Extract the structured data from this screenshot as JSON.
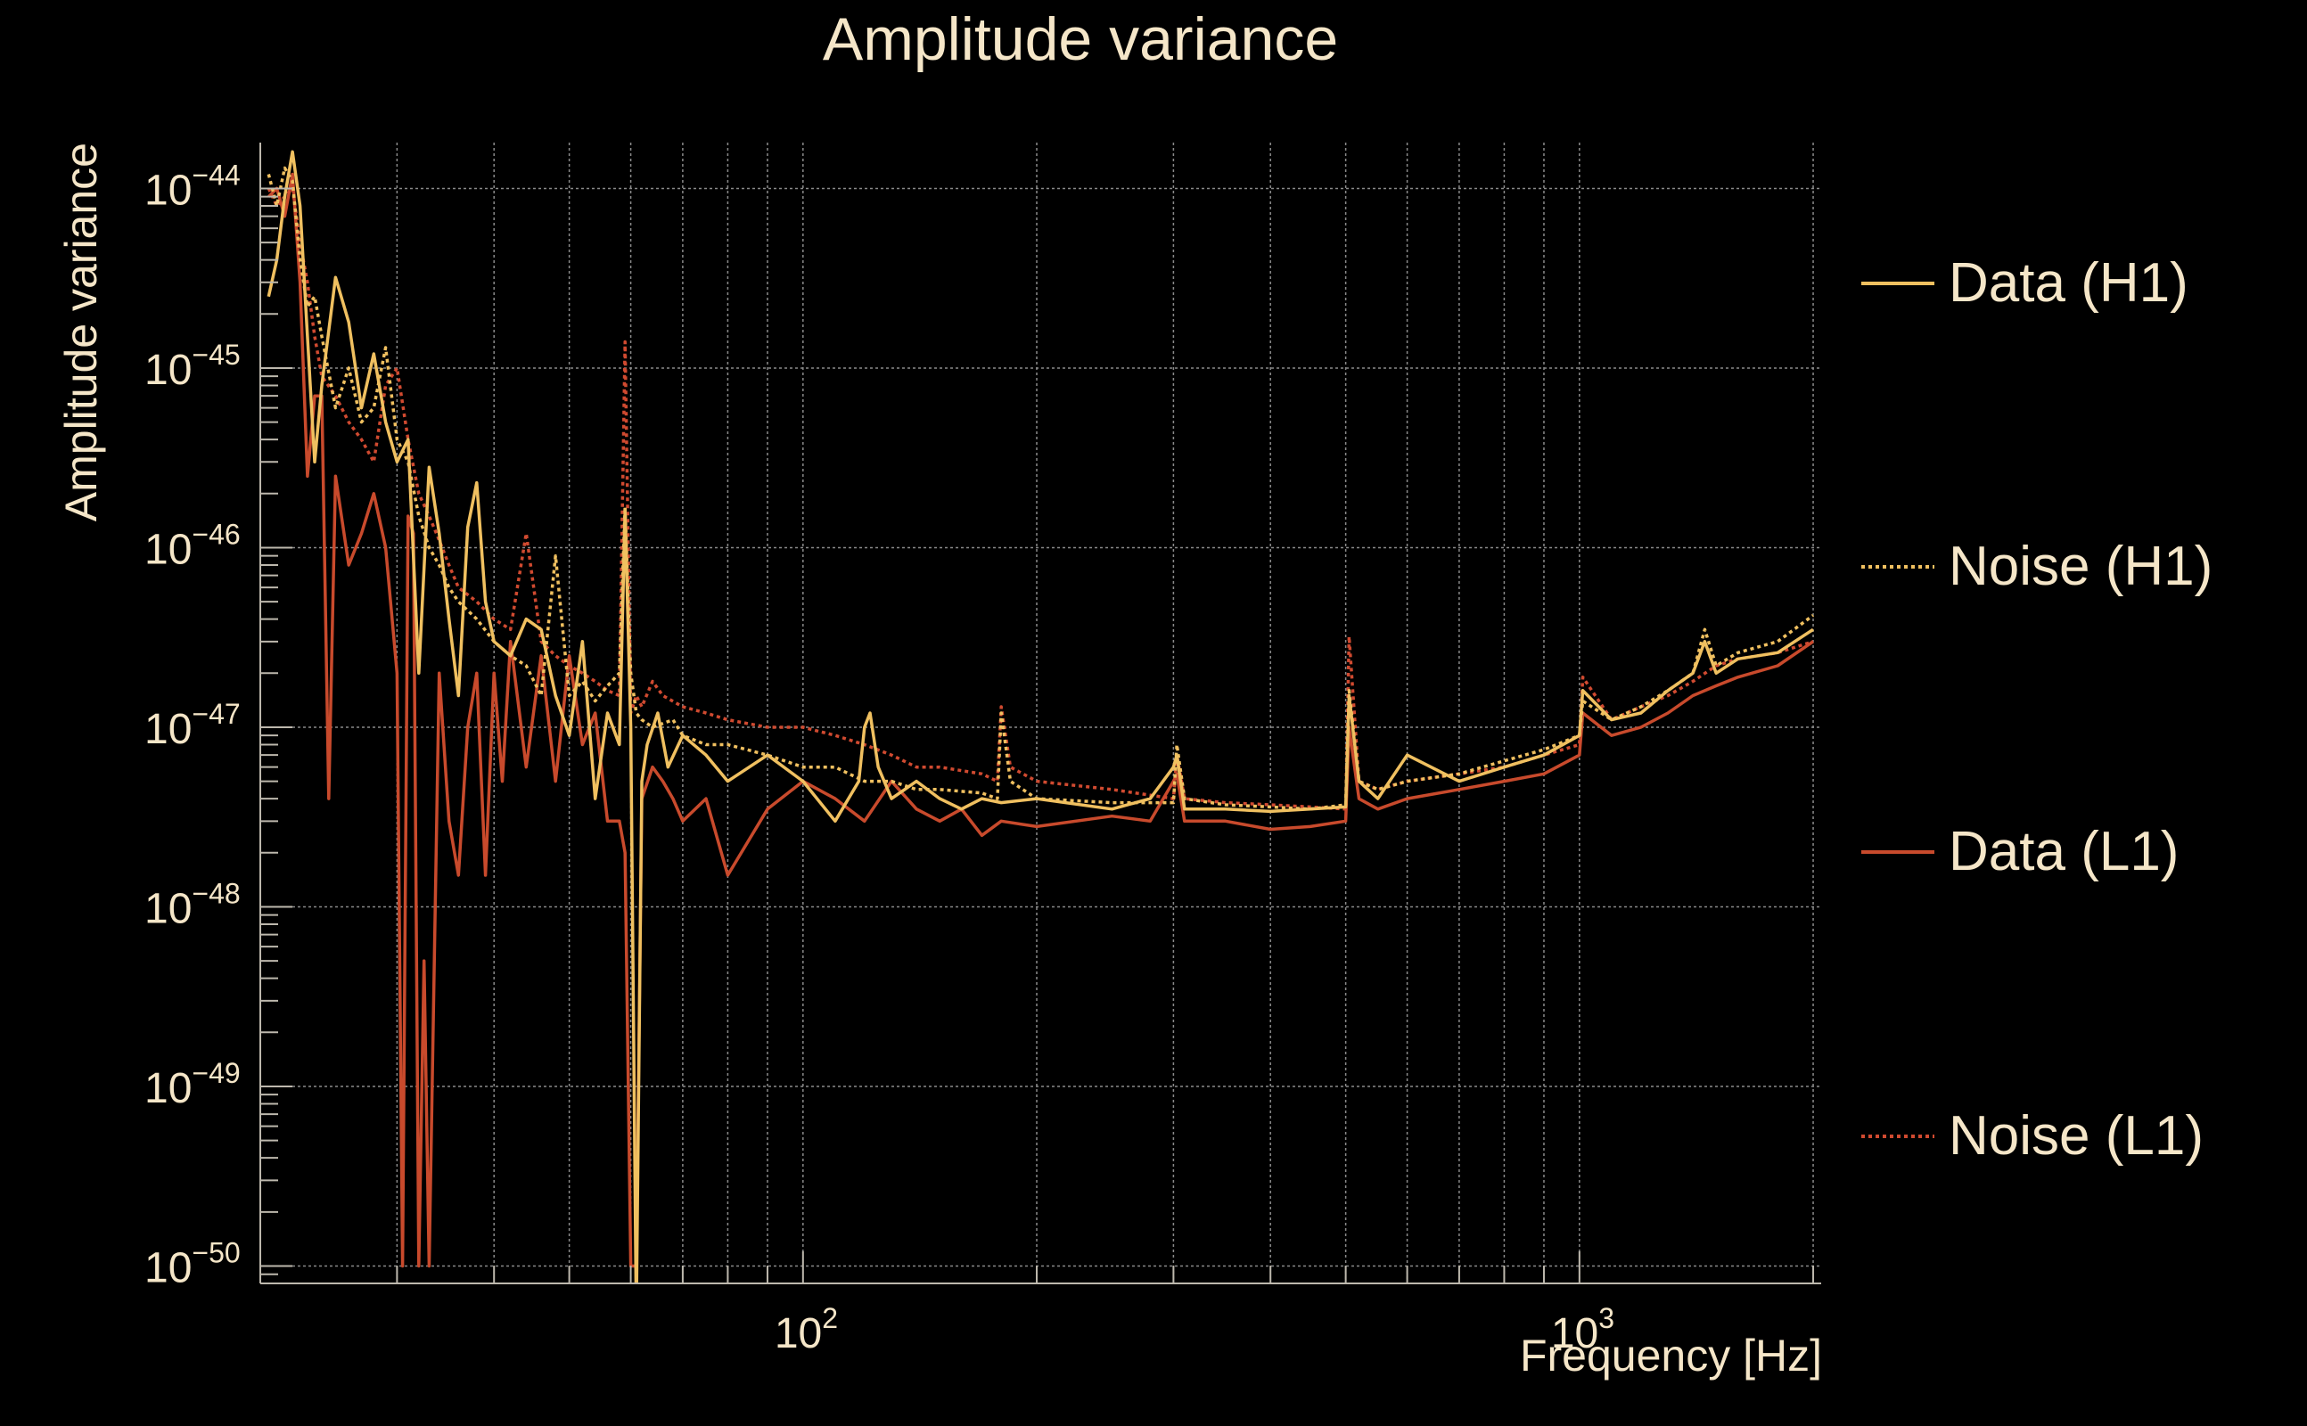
{
  "colors": {
    "background": "#000000",
    "text": "#f5e6c8",
    "axis": "#bdb8ad",
    "grid": "#8a8a8a",
    "data_h1": "#f0c060",
    "noise_h1": "#f0c060",
    "data_l1": "#c84a2c",
    "noise_l1": "#d04a30"
  },
  "chart_data": {
    "type": "line",
    "title": "Amplitude variance",
    "xlabel": "Frequency [Hz]",
    "ylabel": "Amplitude variance",
    "xscale": "log",
    "yscale": "log",
    "xlim": [
      20,
      2048
    ],
    "ylim": [
      8e-51,
      1.8e-44
    ],
    "x_ticks": [
      {
        "value": 100,
        "base": "10",
        "exp": "2"
      },
      {
        "value": 1000,
        "base": "10",
        "exp": "3"
      }
    ],
    "y_ticks": [
      {
        "value": 1e-44,
        "base": "10",
        "exp": "−44"
      },
      {
        "value": 1e-45,
        "base": "10",
        "exp": "−45"
      },
      {
        "value": 1e-46,
        "base": "10",
        "exp": "−46"
      },
      {
        "value": 1e-47,
        "base": "10",
        "exp": "−47"
      },
      {
        "value": 1e-48,
        "base": "10",
        "exp": "−48"
      },
      {
        "value": 1e-49,
        "base": "10",
        "exp": "−49"
      },
      {
        "value": 1e-50,
        "base": "10",
        "exp": "−50"
      }
    ],
    "grid": true,
    "legend_position": "right",
    "series": [
      {
        "name": "Data (H1)",
        "style": "solid",
        "color": "#f0c060",
        "x": [
          20.5,
          21,
          21.5,
          22,
          22.5,
          23,
          23.5,
          24,
          25,
          26,
          27,
          28,
          29,
          30,
          31,
          32,
          33,
          34,
          35,
          36,
          37,
          38,
          39,
          40,
          42,
          44,
          46,
          48,
          50,
          52,
          54,
          56,
          58,
          59,
          60,
          61,
          62,
          63,
          65,
          67,
          70,
          75,
          80,
          90,
          100,
          110,
          118,
          120,
          122,
          125,
          130,
          140,
          150,
          160,
          170,
          180,
          200,
          250,
          280,
          300,
          303,
          310,
          350,
          400,
          450,
          500,
          505,
          520,
          550,
          600,
          700,
          800,
          900,
          1000,
          1010,
          1100,
          1200,
          1300,
          1400,
          1450,
          1500,
          1600,
          1800,
          2000
        ],
        "y": [
          2.5e-45,
          4e-45,
          9e-45,
          1.6e-44,
          8e-45,
          1.5e-45,
          3e-46,
          8e-46,
          3.2e-45,
          1.8e-45,
          6e-46,
          1.2e-45,
          5e-46,
          3e-46,
          4e-46,
          2e-47,
          2.8e-46,
          1.2e-46,
          4e-47,
          1.5e-47,
          1.3e-46,
          2.3e-46,
          5e-47,
          3e-47,
          2.5e-47,
          4e-47,
          3.5e-47,
          1.5e-47,
          9e-48,
          3e-47,
          4e-48,
          1.2e-47,
          8e-48,
          1.6e-46,
          1e-47,
          5e-51,
          5e-48,
          8e-48,
          1.2e-47,
          6e-48,
          9e-48,
          7e-48,
          5e-48,
          7e-48,
          5e-48,
          3e-48,
          5e-48,
          1e-47,
          1.2e-47,
          6e-48,
          4e-48,
          5e-48,
          4e-48,
          3.5e-48,
          4e-48,
          3.8e-48,
          4e-48,
          3.5e-48,
          4e-48,
          6e-48,
          7e-48,
          3.5e-48,
          3.5e-48,
          3.4e-48,
          3.5e-48,
          3.6e-48,
          1.5e-47,
          5e-48,
          4e-48,
          7e-48,
          5e-48,
          6e-48,
          7e-48,
          9e-48,
          1.6e-47,
          1.1e-47,
          1.2e-47,
          1.6e-47,
          2e-47,
          3e-47,
          2e-47,
          2.4e-47,
          2.6e-47,
          3.5e-47
        ]
      },
      {
        "name": "Noise (H1)",
        "style": "dotted",
        "color": "#f0c060",
        "x": [
          20.5,
          21,
          21.5,
          22,
          22.5,
          23,
          23.5,
          24,
          25,
          26,
          27,
          28,
          29,
          30,
          31,
          32,
          33,
          34,
          35,
          36,
          38,
          40,
          42,
          44,
          46,
          48,
          50,
          52,
          54,
          56,
          58,
          59,
          60,
          61,
          62,
          64,
          68,
          70,
          75,
          80,
          90,
          100,
          110,
          120,
          130,
          140,
          150,
          170,
          178,
          180,
          185,
          200,
          250,
          300,
          303,
          310,
          350,
          400,
          450,
          500,
          505,
          520,
          550,
          600,
          700,
          800,
          900,
          1000,
          1010,
          1100,
          1200,
          1300,
          1400,
          1450,
          1500,
          1600,
          1800,
          2000
        ],
        "y": [
          1.2e-44,
          8e-45,
          1.3e-44,
          1.1e-44,
          4e-45,
          2.2e-45,
          2.5e-45,
          1.5e-45,
          6e-46,
          1e-45,
          5e-46,
          6e-46,
          1.3e-45,
          4e-46,
          3e-46,
          1.5e-46,
          1e-46,
          8e-47,
          6e-47,
          5e-47,
          4e-47,
          3e-47,
          2.5e-47,
          2.2e-47,
          1.5e-47,
          9e-47,
          1.5e-47,
          1.8e-47,
          1.4e-47,
          1.7e-47,
          2e-47,
          1.7e-46,
          2e-47,
          1.2e-47,
          1.1e-47,
          1e-47,
          1.1e-47,
          9e-48,
          8e-48,
          8e-48,
          7e-48,
          6e-48,
          6e-48,
          5e-48,
          5e-48,
          4.5e-48,
          4.5e-48,
          4.3e-48,
          4e-48,
          1.2e-47,
          5e-48,
          4e-48,
          3.8e-48,
          3.8e-48,
          8e-48,
          4e-48,
          3.7e-48,
          3.6e-48,
          3.5e-48,
          3.7e-48,
          1.6e-47,
          5e-48,
          4.5e-48,
          5e-48,
          5.5e-48,
          6.5e-48,
          7.5e-48,
          9e-48,
          1.4e-47,
          1.1e-47,
          1.3e-47,
          1.6e-47,
          2e-47,
          3.5e-47,
          2.2e-47,
          2.6e-47,
          3e-47,
          4.2e-47
        ]
      },
      {
        "name": "Data (L1)",
        "style": "solid",
        "color": "#c84a2c",
        "x": [
          20.5,
          21,
          21.5,
          22,
          22.5,
          23,
          23.5,
          24,
          24.5,
          25,
          26,
          27,
          28,
          29,
          30,
          30.5,
          31,
          31.5,
          32,
          32.5,
          33,
          34,
          35,
          36,
          37,
          38,
          39,
          40,
          41,
          42,
          44,
          46,
          48,
          50,
          52,
          54,
          56,
          58,
          59,
          60,
          61,
          62,
          64,
          66,
          68,
          70,
          75,
          80,
          90,
          100,
          110,
          120,
          130,
          140,
          150,
          160,
          170,
          180,
          200,
          250,
          280,
          300,
          303,
          310,
          350,
          400,
          450,
          500,
          505,
          520,
          550,
          600,
          700,
          800,
          900,
          1000,
          1010,
          1100,
          1200,
          1300,
          1400,
          1500,
          1600,
          1800,
          2000
        ],
        "y": [
          9e-45,
          1e-44,
          7e-45,
          1.2e-44,
          3e-45,
          2.5e-46,
          7e-46,
          7e-46,
          4e-48,
          2.5e-46,
          8e-47,
          1.2e-46,
          2e-46,
          1e-46,
          2e-47,
          1e-50,
          1.5e-46,
          1.2e-46,
          1e-50,
          5e-49,
          1e-50,
          2e-47,
          3e-48,
          1.5e-48,
          1e-47,
          2e-47,
          1.5e-48,
          2e-47,
          5e-48,
          3e-47,
          6e-48,
          2.5e-47,
          5e-48,
          2.5e-47,
          8e-48,
          1.2e-47,
          3e-48,
          3e-48,
          2e-48,
          1e-50,
          1e-50,
          4e-48,
          6e-48,
          5e-48,
          4e-48,
          3e-48,
          4e-48,
          1.5e-48,
          3.5e-48,
          5e-48,
          4e-48,
          3e-48,
          5e-48,
          3.5e-48,
          3e-48,
          3.5e-48,
          2.5e-48,
          3e-48,
          2.8e-48,
          3.2e-48,
          3e-48,
          5e-48,
          5.5e-48,
          3e-48,
          3e-48,
          2.7e-48,
          2.8e-48,
          3e-48,
          1e-47,
          4e-48,
          3.5e-48,
          4e-48,
          4.5e-48,
          5e-48,
          5.5e-48,
          7e-48,
          1.2e-47,
          9e-48,
          1e-47,
          1.2e-47,
          1.5e-47,
          1.7e-47,
          1.9e-47,
          2.2e-47,
          3e-47
        ]
      },
      {
        "name": "Noise (L1)",
        "style": "dotted",
        "color": "#d04a30",
        "x": [
          20.5,
          21,
          21.5,
          22,
          22.5,
          23,
          23.5,
          24,
          25,
          26,
          27,
          28,
          29,
          30,
          31,
          32,
          33,
          34,
          35,
          36,
          38,
          40,
          42,
          44,
          46,
          48,
          50,
          52,
          54,
          56,
          58,
          59,
          60,
          61,
          62,
          64,
          66,
          70,
          75,
          80,
          90,
          100,
          110,
          120,
          130,
          140,
          150,
          170,
          178,
          180,
          185,
          200,
          250,
          300,
          303,
          310,
          350,
          400,
          450,
          500,
          505,
          520,
          550,
          600,
          700,
          800,
          900,
          1000,
          1010,
          1100,
          1200,
          1300,
          1400,
          1500,
          1600,
          1800,
          2000
        ],
        "y": [
          1e-44,
          8e-45,
          9e-45,
          1e-44,
          5e-45,
          3e-45,
          1.5e-45,
          9e-46,
          7e-46,
          5e-46,
          4e-46,
          3e-46,
          8e-46,
          1e-45,
          4e-46,
          2e-46,
          1.5e-46,
          1.1e-46,
          8e-47,
          6e-47,
          5e-47,
          4e-47,
          3.5e-47,
          1.2e-46,
          3e-47,
          2.5e-47,
          2.2e-47,
          2e-47,
          1.8e-47,
          1.6e-47,
          1.5e-47,
          1.4e-45,
          1.2e-47,
          1.5e-47,
          1.3e-47,
          1.8e-47,
          1.5e-47,
          1.3e-47,
          1.2e-47,
          1.1e-47,
          1e-47,
          1e-47,
          9e-48,
          8e-48,
          7e-48,
          6e-48,
          6e-48,
          5.5e-48,
          5e-48,
          1.3e-47,
          6e-48,
          5e-48,
          4.5e-48,
          4e-48,
          7e-48,
          4e-48,
          3.8e-48,
          3.7e-48,
          3.6e-48,
          3.5e-48,
          3.2e-47,
          5e-48,
          4.5e-48,
          5e-48,
          5.5e-48,
          6e-48,
          7e-48,
          8e-48,
          1.9e-47,
          1.1e-47,
          1.3e-47,
          1.5e-47,
          1.8e-47,
          2.2e-47,
          2.4e-47,
          2.6e-47,
          3e-47
        ]
      }
    ]
  }
}
